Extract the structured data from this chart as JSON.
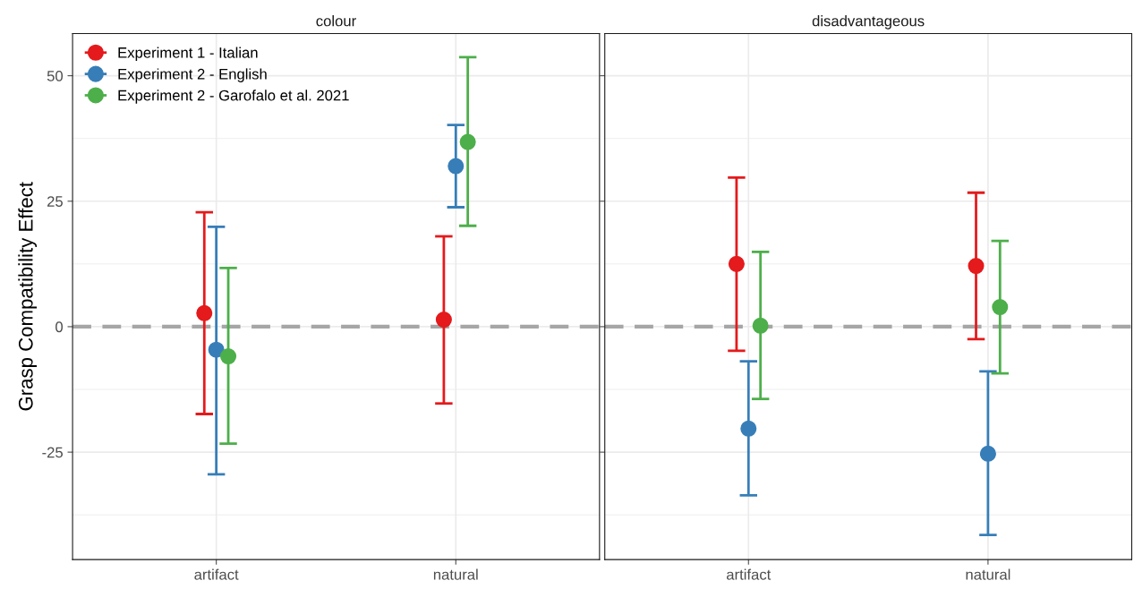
{
  "chart_data": [
    {
      "type": "scatter",
      "title": "colour",
      "ylabel": "Grasp Compatibility Effect",
      "categories": [
        "artifact",
        "natural"
      ],
      "ylim": [
        -46.4,
        58.4
      ],
      "yticks": [
        50,
        25,
        0,
        {
          "value": -25,
          "label": "-25"
        }
      ],
      "grid": true,
      "legend": "top left",
      "marker": "circle",
      "ref_lines": [
        {
          "axis": "y",
          "value": 0,
          "color": "#a6a6a6",
          "line_style": "dashed"
        }
      ],
      "series": [
        {
          "name": "Experiment 1 - Italian",
          "color": "#e41a1c",
          "values": [
            2.7,
            1.4
          ],
          "errors": [
            [
              -17.4,
              22.8
            ],
            [
              -15.3,
              18.0
            ]
          ]
        },
        {
          "name": "Experiment 2 - English",
          "color": "#377eb8",
          "values": [
            -4.6,
            32.0
          ],
          "errors": [
            [
              -29.4,
              19.9
            ],
            [
              23.8,
              40.2
            ]
          ]
        },
        {
          "name": "Experiment 2 - Garofalo et al. 2021",
          "color": "#4daf4a",
          "values": [
            -5.9,
            36.8
          ],
          "errors": [
            [
              -23.3,
              11.7
            ],
            [
              20.1,
              53.7
            ]
          ]
        }
      ]
    },
    {
      "type": "scatter",
      "title": "disadvantageous",
      "categories": [
        "artifact",
        "natural"
      ],
      "ylim": [
        -46.4,
        58.4
      ],
      "yticks": [
        {
          "value": 50,
          "label": null
        },
        {
          "value": 25,
          "label": null
        },
        {
          "value": 0,
          "label": null
        },
        {
          "value": -25,
          "label": null
        }
      ],
      "grid": true,
      "tick_labels": "x",
      "marker": "circle",
      "ref_lines": [
        {
          "axis": "y",
          "value": 0,
          "color": "#a6a6a6",
          "line_style": "dashed"
        }
      ],
      "series": [
        {
          "color": "#e41a1c",
          "values": [
            12.5,
            12.1
          ],
          "errors": [
            [
              -4.8,
              29.7
            ],
            [
              -2.5,
              26.7
            ]
          ]
        },
        {
          "color": "#377eb8",
          "values": [
            -20.3,
            -25.3
          ],
          "errors": [
            [
              -33.6,
              -6.9
            ],
            [
              -41.5,
              -8.9
            ]
          ]
        },
        {
          "color": "#4daf4a",
          "values": [
            0.2,
            3.9
          ],
          "errors": [
            [
              -14.4,
              14.9
            ],
            [
              -9.3,
              17.1
            ]
          ]
        }
      ]
    }
  ]
}
